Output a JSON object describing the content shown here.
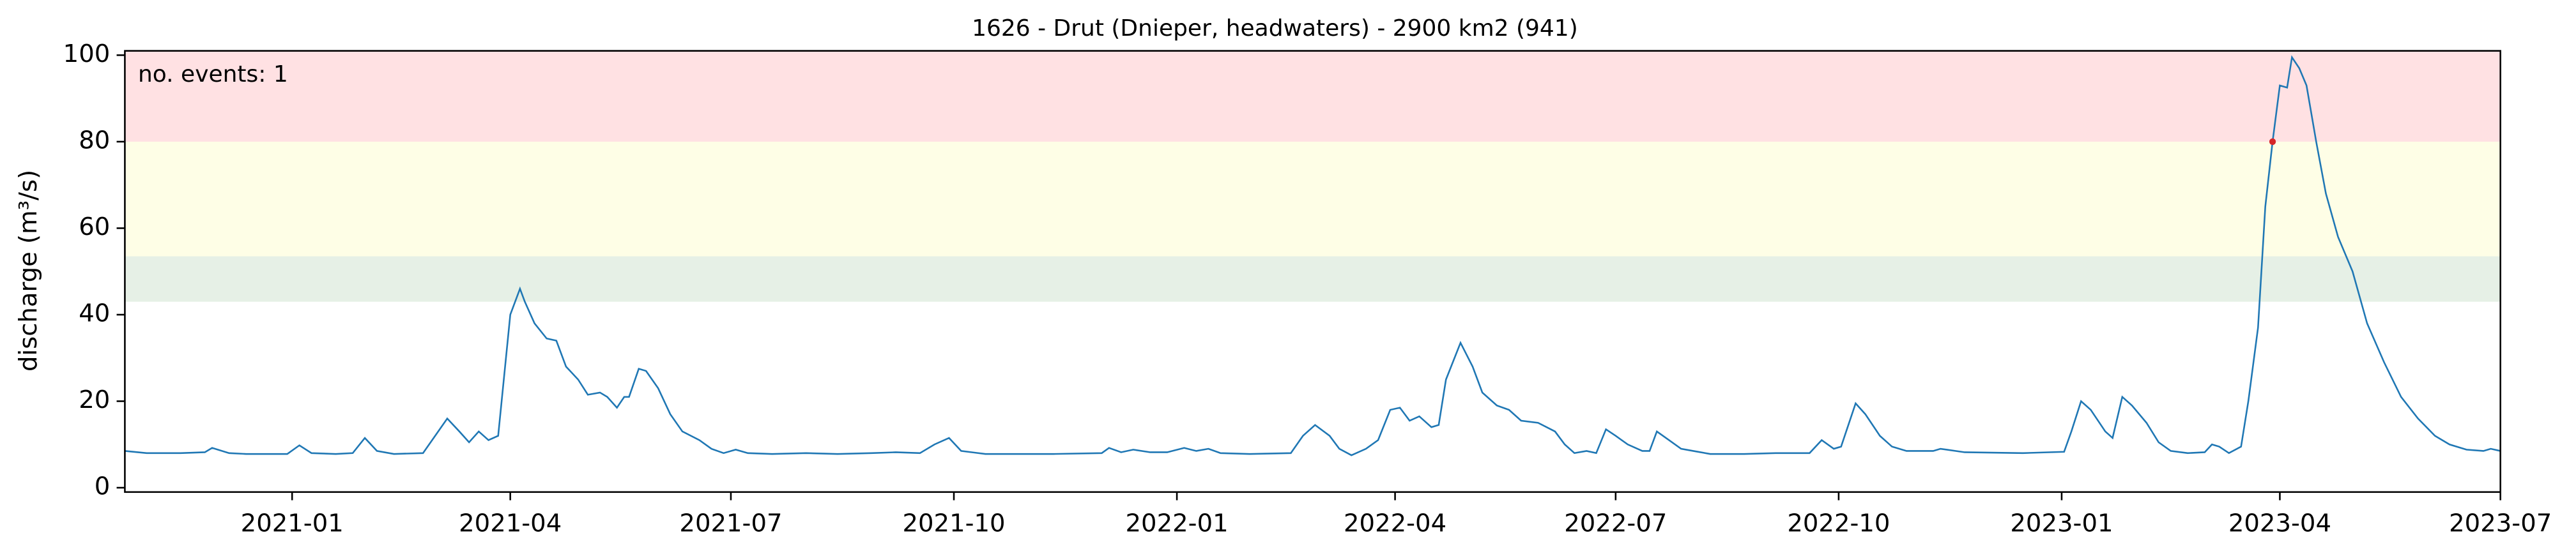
{
  "chart_data": {
    "type": "line",
    "title": "1626 - Drut (Dnieper, headwaters) - 2900 km2 (941)",
    "y_label": "discharge (m³/s)",
    "annotation": "no. events: 1",
    "annotation_color": "#d62728",
    "color": "#1f77b4",
    "xlim": [
      18559,
      19539
    ],
    "ylim": [
      -1,
      101
    ],
    "yticks": [
      0,
      20,
      40,
      60,
      80,
      100
    ],
    "xticks": [
      {
        "value": 18628,
        "label": "2021-01"
      },
      {
        "value": 18718,
        "label": "2021-04"
      },
      {
        "value": 18809,
        "label": "2021-07"
      },
      {
        "value": 18901,
        "label": "2021-10"
      },
      {
        "value": 18993,
        "label": "2022-01"
      },
      {
        "value": 19083,
        "label": "2022-04"
      },
      {
        "value": 19174,
        "label": "2022-07"
      },
      {
        "value": 19266,
        "label": "2022-10"
      },
      {
        "value": 19358,
        "label": "2023-01"
      },
      {
        "value": 19448,
        "label": "2023-04"
      },
      {
        "value": 19539,
        "label": "2023-07"
      }
    ],
    "bands": [
      {
        "from": 43,
        "to": 53.5,
        "color": "#e6f0e6"
      },
      {
        "from": 53.5,
        "to": 80,
        "color": "#fefee6"
      },
      {
        "from": 80,
        "to": 101,
        "color": "#ffe1e3"
      }
    ],
    "x": [
      18559,
      18568,
      18582,
      18592,
      18595,
      18602,
      18609,
      18626,
      18631,
      18636,
      18646,
      18653,
      18658,
      18663,
      18670,
      18682,
      18687,
      18692,
      18697,
      18701,
      18705,
      18709,
      18713,
      18718,
      18722,
      18724,
      18728,
      18733,
      18737,
      18741,
      18746,
      18750,
      18755,
      18758,
      18762,
      18765,
      18767,
      18771,
      18774,
      18779,
      18784,
      18789,
      18796,
      18801,
      18806,
      18811,
      18816,
      18826,
      18840,
      18853,
      18867,
      18877,
      18887,
      18893,
      18899,
      18904,
      18914,
      18942,
      18962,
      18965,
      18970,
      18975,
      18982,
      18989,
      18996,
      19001,
      19006,
      19011,
      19023,
      19040,
      19045,
      19050,
      19056,
      19060,
      19065,
      19071,
      19076,
      19081,
      19085,
      19089,
      19093,
      19098,
      19101,
      19104,
      19110,
      19115,
      19119,
      19125,
      19130,
      19135,
      19142,
      19149,
      19153,
      19157,
      19162,
      19166,
      19170,
      19174,
      19179,
      19185,
      19188,
      19191,
      19196,
      19201,
      19206,
      19213,
      19227,
      19240,
      19254,
      19259,
      19264,
      19267,
      19273,
      19277,
      19283,
      19288,
      19294,
      19305,
      19308,
      19318,
      19342,
      19359,
      19362,
      19366,
      19370,
      19376,
      19379,
      19383,
      19387,
      19393,
      19398,
      19403,
      19410,
      19417,
      19420,
      19423,
      19427,
      19432,
      19435,
      19439,
      19442,
      19445,
      19448,
      19451,
      19453,
      19456,
      19459,
      19463,
      19467,
      19472,
      19478,
      19484,
      19491,
      19498,
      19505,
      19512,
      19518,
      19525,
      19532,
      19535,
      19539
    ],
    "values": [
      8.5,
      8,
      8,
      8.2,
      9.2,
      8,
      7.8,
      7.8,
      9.8,
      8,
      7.8,
      8,
      11.5,
      8.5,
      7.8,
      8,
      12,
      16,
      13,
      10.5,
      13,
      11,
      12,
      40,
      46,
      43,
      38,
      34.5,
      34,
      28,
      25,
      21.5,
      22,
      21,
      18.5,
      21,
      21,
      27.5,
      27,
      23,
      17,
      13,
      11,
      9,
      8,
      8.8,
      8,
      7.8,
      8,
      7.8,
      8,
      8.2,
      8,
      10,
      11.5,
      8.5,
      7.8,
      7.8,
      8,
      9.2,
      8.2,
      8.8,
      8.2,
      8.2,
      9.2,
      8.5,
      9,
      8,
      7.8,
      8,
      12,
      14.5,
      12,
      9,
      7.5,
      9,
      11,
      18,
      18.5,
      15.5,
      16.5,
      14,
      14.5,
      25,
      33.5,
      28,
      22,
      19,
      18,
      15.5,
      15,
      13,
      10,
      8,
      8.5,
      8,
      13.5,
      12,
      10,
      8.5,
      8.5,
      13,
      11,
      9,
      8.5,
      7.8,
      7.8,
      8,
      8,
      11,
      9,
      9.5,
      19.5,
      17,
      12,
      9.5,
      8.5,
      8.5,
      9,
      8.2,
      8,
      8.3,
      13,
      20,
      18,
      13,
      11.5,
      21,
      19,
      15,
      10.5,
      8.5,
      8,
      8.2,
      10,
      9.5,
      8,
      9.5,
      20,
      37,
      65,
      80,
      93,
      92.5,
      99.5,
      97,
      93,
      80,
      68,
      58,
      50,
      38,
      29,
      21,
      16,
      12,
      10,
      8.8,
      8.5,
      9,
      8.5
    ],
    "events": {
      "x": [
        19445
      ],
      "values": [
        80
      ]
    }
  }
}
